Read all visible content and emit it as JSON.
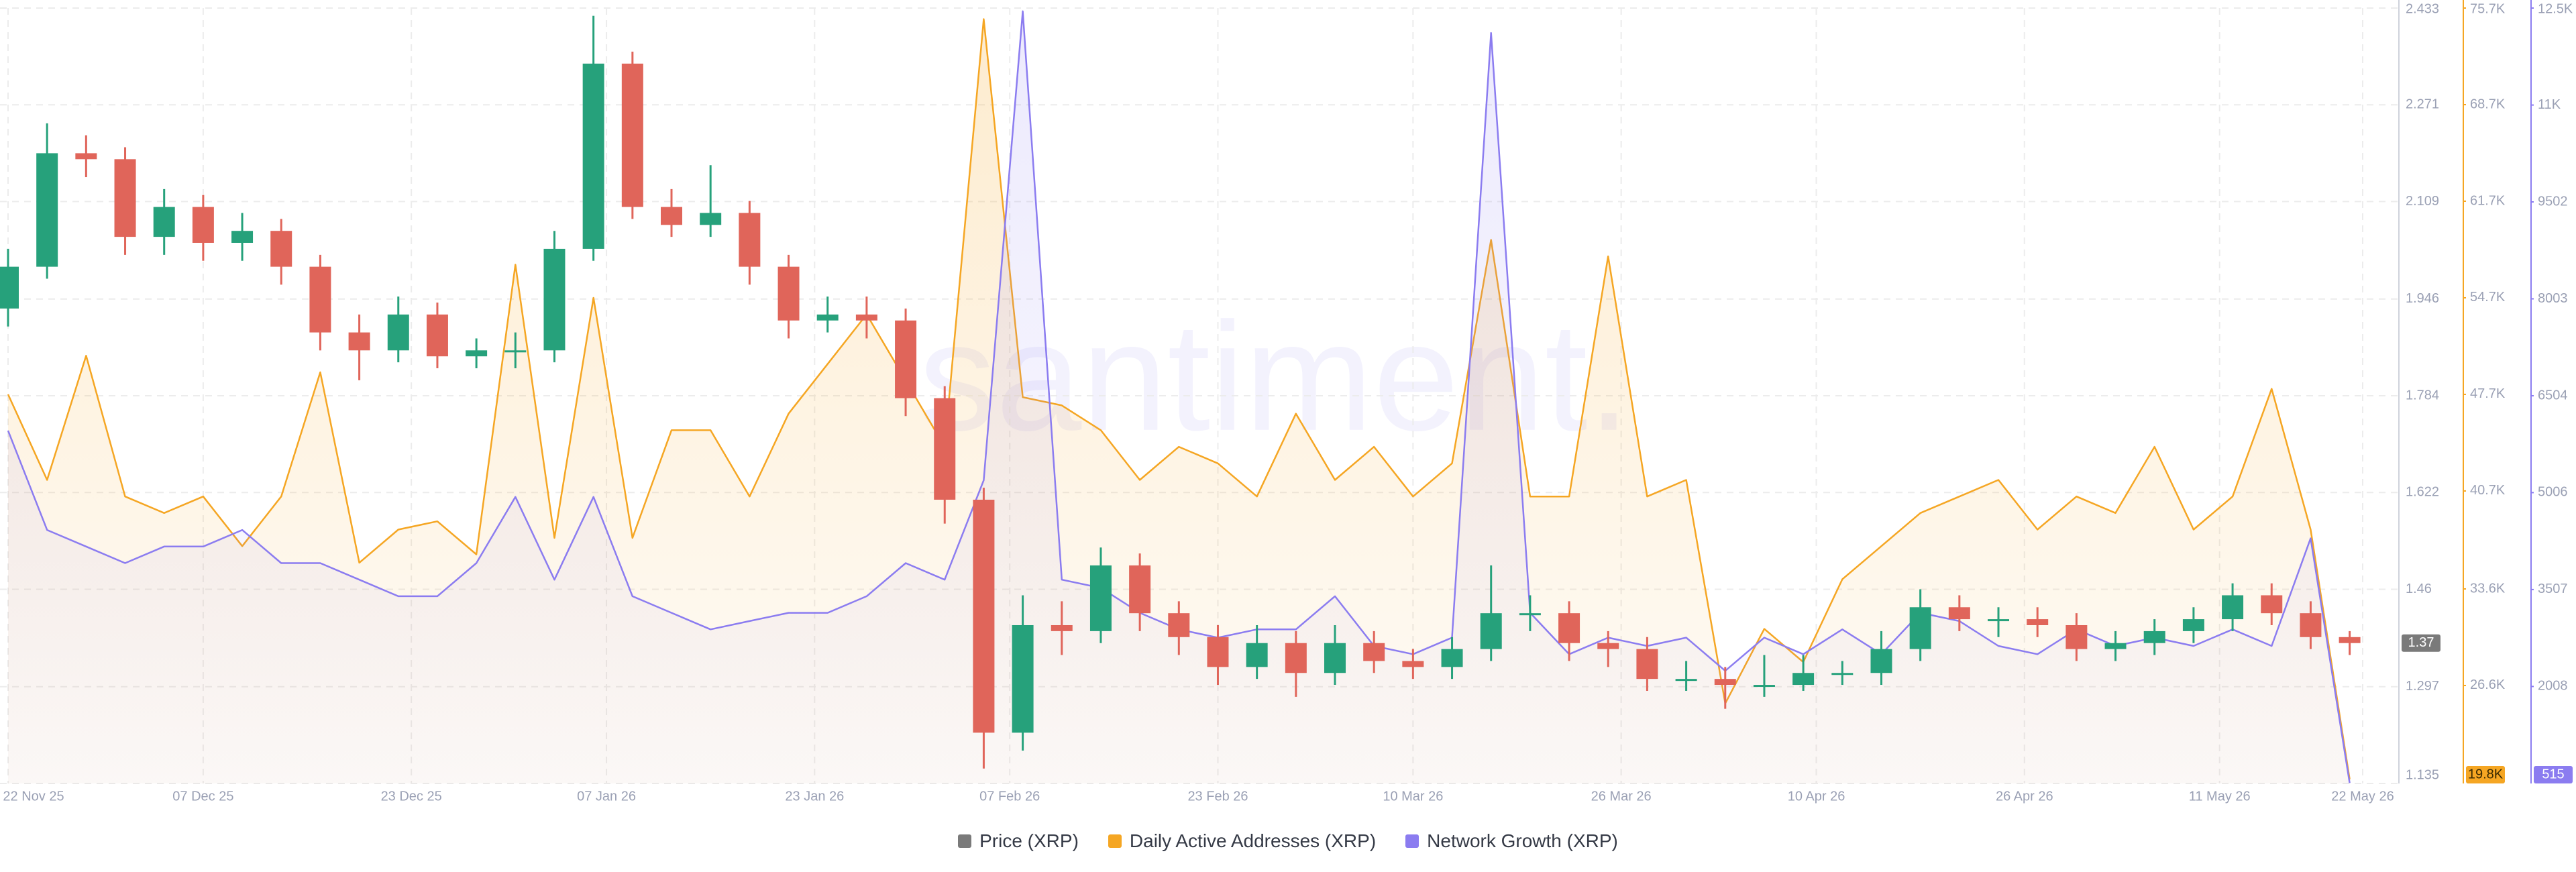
{
  "chart_data": {
    "type": "candlestick",
    "watermark": "santiment.",
    "x": [
      "2025-11-22",
      "2025-11-25",
      "2025-11-28",
      "2025-12-01",
      "2025-12-04",
      "2025-12-07",
      "2025-12-10",
      "2025-12-13",
      "2025-12-16",
      "2025-12-19",
      "2025-12-22",
      "2025-12-25",
      "2025-12-28",
      "2025-12-31",
      "2026-01-03",
      "2026-01-06",
      "2026-01-09",
      "2026-01-12",
      "2026-01-15",
      "2026-01-18",
      "2026-01-21",
      "2026-01-24",
      "2026-01-27",
      "2026-01-30",
      "2026-02-02",
      "2026-02-05",
      "2026-02-08",
      "2026-02-11",
      "2026-02-14",
      "2026-02-17",
      "2026-02-20",
      "2026-02-23",
      "2026-02-26",
      "2026-03-01",
      "2026-03-04",
      "2026-03-07",
      "2026-03-10",
      "2026-03-13",
      "2026-03-16",
      "2026-03-19",
      "2026-03-22",
      "2026-03-25",
      "2026-03-28",
      "2026-03-31",
      "2026-04-03",
      "2026-04-06",
      "2026-04-09",
      "2026-04-12",
      "2026-04-15",
      "2026-04-18",
      "2026-04-21",
      "2026-04-24",
      "2026-04-27",
      "2026-04-30",
      "2026-05-03",
      "2026-05-06",
      "2026-05-09",
      "2026-05-12",
      "2026-05-15",
      "2026-05-18",
      "2026-05-21"
    ],
    "xlim": [
      "2025-11-22",
      "2026-05-22"
    ],
    "xticks": [
      {
        "value": "2025-11-22",
        "label": "22 Nov 25"
      },
      {
        "value": "2025-12-07",
        "label": "07 Dec 25"
      },
      {
        "value": "2025-12-23",
        "label": "23 Dec 25"
      },
      {
        "value": "2026-01-07",
        "label": "07 Jan 26"
      },
      {
        "value": "2026-01-23",
        "label": "23 Jan 26"
      },
      {
        "value": "2026-02-07",
        "label": "07 Feb 26"
      },
      {
        "value": "2026-02-23",
        "label": "23 Feb 26"
      },
      {
        "value": "2026-03-10",
        "label": "10 Mar 26"
      },
      {
        "value": "2026-03-26",
        "label": "26 Mar 26"
      },
      {
        "value": "2026-04-10",
        "label": "10 Apr 26"
      },
      {
        "value": "2026-04-26",
        "label": "26 Apr 26"
      },
      {
        "value": "2026-05-11",
        "label": "11 May 26"
      },
      {
        "value": "2026-05-22",
        "label": "22 May 26"
      }
    ],
    "ylim": [
      1.135,
      2.433
    ],
    "yticks": [
      1.135,
      1.297,
      1.46,
      1.622,
      1.784,
      1.946,
      2.109,
      2.271,
      2.433
    ],
    "y2lim": [
      19500,
      75700
    ],
    "y2ticks": [
      {
        "value": 26600,
        "label": "26.6K"
      },
      {
        "value": 33600,
        "label": "33.6K"
      },
      {
        "value": 40700,
        "label": "40.7K"
      },
      {
        "value": 47700,
        "label": "47.7K"
      },
      {
        "value": 54700,
        "label": "54.7K"
      },
      {
        "value": 61700,
        "label": "61.7K"
      },
      {
        "value": 68700,
        "label": "68.7K"
      },
      {
        "value": 75700,
        "label": "75.7K"
      }
    ],
    "y3lim": [
      508,
      12500
    ],
    "y3ticks": [
      2008,
      3507,
      5006,
      6504,
      8003,
      9502,
      {
        "value": 11000,
        "label": "11K"
      },
      {
        "value": 12500,
        "label": "12.5K"
      }
    ],
    "grid": true,
    "series": [
      {
        "name": "Price (XRP)",
        "type": "candlestick",
        "axis": "y",
        "color": "#7a7a7a",
        "up_color": "#26a17b",
        "down_color": "#e0655a",
        "open": [
          1.93,
          2.0,
          2.19,
          2.18,
          2.05,
          2.1,
          2.04,
          2.06,
          2.0,
          1.89,
          1.86,
          1.92,
          1.85,
          1.86,
          1.86,
          2.03,
          2.34,
          2.1,
          2.07,
          2.09,
          2.0,
          1.91,
          1.92,
          1.91,
          1.78,
          1.61,
          1.22,
          1.4,
          1.39,
          1.5,
          1.42,
          1.38,
          1.33,
          1.37,
          1.32,
          1.37,
          1.34,
          1.33,
          1.36,
          1.42,
          1.42,
          1.37,
          1.36,
          1.31,
          1.31,
          1.3,
          1.3,
          1.32,
          1.32,
          1.36,
          1.43,
          1.41,
          1.41,
          1.4,
          1.36,
          1.37,
          1.39,
          1.41,
          1.45,
          1.42,
          1.38
        ],
        "high": [
          2.03,
          2.24,
          2.22,
          2.2,
          2.13,
          2.12,
          2.09,
          2.08,
          2.02,
          1.92,
          1.95,
          1.94,
          1.88,
          1.89,
          2.06,
          2.42,
          2.36,
          2.13,
          2.17,
          2.11,
          2.02,
          1.95,
          1.95,
          1.93,
          1.8,
          1.63,
          1.45,
          1.44,
          1.53,
          1.52,
          1.44,
          1.4,
          1.4,
          1.39,
          1.4,
          1.39,
          1.36,
          1.38,
          1.5,
          1.45,
          1.44,
          1.39,
          1.38,
          1.34,
          1.33,
          1.35,
          1.35,
          1.34,
          1.39,
          1.46,
          1.45,
          1.43,
          1.43,
          1.42,
          1.39,
          1.41,
          1.43,
          1.47,
          1.47,
          1.44,
          1.39
        ],
        "low": [
          1.9,
          1.98,
          2.15,
          2.02,
          2.02,
          2.01,
          2.01,
          1.97,
          1.86,
          1.81,
          1.84,
          1.83,
          1.83,
          1.83,
          1.84,
          2.01,
          2.08,
          2.05,
          2.05,
          1.97,
          1.88,
          1.89,
          1.88,
          1.75,
          1.57,
          1.16,
          1.19,
          1.35,
          1.37,
          1.39,
          1.35,
          1.3,
          1.31,
          1.28,
          1.3,
          1.32,
          1.31,
          1.31,
          1.34,
          1.39,
          1.34,
          1.33,
          1.29,
          1.29,
          1.26,
          1.28,
          1.29,
          1.3,
          1.3,
          1.34,
          1.39,
          1.38,
          1.38,
          1.34,
          1.34,
          1.35,
          1.37,
          1.39,
          1.4,
          1.36,
          1.35
        ],
        "close": [
          2.0,
          2.19,
          2.18,
          2.05,
          2.1,
          2.04,
          2.06,
          2.0,
          1.89,
          1.86,
          1.92,
          1.85,
          1.86,
          1.86,
          2.03,
          2.34,
          2.1,
          2.07,
          2.09,
          2.0,
          1.91,
          1.92,
          1.91,
          1.78,
          1.61,
          1.22,
          1.4,
          1.39,
          1.5,
          1.42,
          1.38,
          1.33,
          1.37,
          1.32,
          1.37,
          1.34,
          1.33,
          1.36,
          1.42,
          1.42,
          1.37,
          1.36,
          1.31,
          1.31,
          1.3,
          1.3,
          1.32,
          1.32,
          1.36,
          1.43,
          1.41,
          1.41,
          1.4,
          1.36,
          1.37,
          1.39,
          1.41,
          1.45,
          1.42,
          1.38,
          1.37
        ]
      },
      {
        "name": "Daily Active Addresses (XRP)",
        "type": "area",
        "axis": "y2",
        "color": "#f5a623",
        "text_color": "#3a2a00",
        "values": [
          47700,
          41500,
          50500,
          40300,
          39100,
          40300,
          36700,
          40300,
          49300,
          35500,
          37900,
          38500,
          36100,
          57100,
          37300,
          54700,
          37300,
          45100,
          45100,
          40300,
          46300,
          49900,
          53500,
          48700,
          43900,
          74900,
          47500,
          46900,
          45100,
          41500,
          43900,
          42700,
          40300,
          46300,
          41500,
          43900,
          40300,
          42700,
          58900,
          40300,
          40300,
          57700,
          40300,
          41500,
          25300,
          30700,
          28300,
          34300,
          36700,
          39100,
          40300,
          41500,
          37900,
          40300,
          39100,
          43900,
          37900,
          40300,
          48100,
          37900,
          19800
        ],
        "value_labels": [
          null,
          null,
          null,
          null,
          null,
          null,
          null,
          null,
          null,
          null,
          null,
          null,
          null,
          null,
          null,
          null,
          null,
          null,
          null,
          null,
          null,
          null,
          null,
          null,
          null,
          null,
          null,
          null,
          null,
          null,
          null,
          null,
          null,
          null,
          null,
          null,
          null,
          null,
          null,
          null,
          null,
          null,
          null,
          null,
          null,
          null,
          null,
          null,
          null,
          null,
          null,
          null,
          null,
          null,
          null,
          null,
          null,
          null,
          null,
          null,
          "19.8K"
        ]
      },
      {
        "name": "Network Growth (XRP)",
        "type": "area",
        "axis": "y3",
        "color": "#8b7cf0",
        "text_color": "#ffffff",
        "values": [
          5966,
          4428,
          4172,
          3916,
          4172,
          4172,
          4428,
          3916,
          3916,
          3660,
          3403,
          3403,
          3916,
          4940,
          3660,
          4940,
          3403,
          3147,
          2891,
          3019,
          3147,
          3147,
          3403,
          3916,
          3660,
          5197,
          12450,
          3660,
          3532,
          3147,
          2891,
          2763,
          2891,
          2891,
          3403,
          2635,
          2507,
          2763,
          12115,
          3147,
          2507,
          2763,
          2635,
          2763,
          2250,
          2763,
          2507,
          2891,
          2507,
          3147,
          3019,
          2635,
          2507,
          2891,
          2635,
          2763,
          2635,
          2891,
          2635,
          4300,
          515
        ]
      }
    ]
  }
}
